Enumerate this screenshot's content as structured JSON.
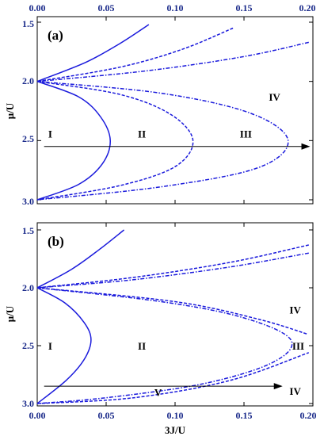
{
  "chart_data": [
    {
      "type": "line",
      "panel_label": "(a)",
      "xlabel": "",
      "ylabel": "μ/U",
      "x_tick_position": "top",
      "xlim": [
        0.0,
        0.2
      ],
      "ylim": [
        3.0,
        1.5
      ],
      "x_ticks": [
        "0.00",
        "0.05",
        "0.10",
        "0.15",
        "0.20"
      ],
      "y_ticks": [
        "1.5",
        "2.0",
        "2.5",
        "3.0"
      ],
      "colors": {
        "curves": "#1a1adc",
        "arrow": "#000000"
      },
      "series": [
        {
          "style": "solid",
          "points": [
            [
              0.081,
              1.52
            ],
            [
              0.06,
              1.68
            ],
            [
              0.035,
              1.84
            ],
            [
              0.0,
              2.0
            ]
          ]
        },
        {
          "style": "dashed",
          "points": [
            [
              0.142,
              1.55
            ],
            [
              0.105,
              1.73
            ],
            [
              0.06,
              1.88
            ],
            [
              0.0,
              2.0
            ]
          ]
        },
        {
          "style": "dashdot",
          "points": [
            [
              0.197,
              1.67
            ],
            [
              0.15,
              1.79
            ],
            [
              0.08,
              1.91
            ],
            [
              0.0,
              2.0
            ]
          ]
        },
        {
          "style": "solid",
          "points": [
            [
              0.0,
              2.0
            ],
            [
              0.03,
              2.13
            ],
            [
              0.046,
              2.3
            ],
            [
              0.053,
              2.5
            ],
            [
              0.047,
              2.7
            ],
            [
              0.03,
              2.87
            ],
            [
              0.0,
              3.0
            ]
          ]
        },
        {
          "style": "dashed",
          "points": [
            [
              0.0,
              2.0
            ],
            [
              0.06,
              2.11
            ],
            [
              0.097,
              2.28
            ],
            [
              0.113,
              2.5
            ],
            [
              0.1,
              2.72
            ],
            [
              0.06,
              2.88
            ],
            [
              0.0,
              3.0
            ]
          ]
        },
        {
          "style": "dashdot",
          "points": [
            [
              0.0,
              2.0
            ],
            [
              0.09,
              2.1
            ],
            [
              0.155,
              2.27
            ],
            [
              0.182,
              2.5
            ],
            [
              0.16,
              2.73
            ],
            [
              0.09,
              2.89
            ],
            [
              0.0,
              3.0
            ]
          ]
        }
      ],
      "region_labels": [
        {
          "text": "I",
          "x": 0.008,
          "y": 2.44
        },
        {
          "text": "II",
          "x": 0.073,
          "y": 2.44
        },
        {
          "text": "III",
          "x": 0.147,
          "y": 2.44
        },
        {
          "text": "IV",
          "x": 0.168,
          "y": 2.13
        }
      ],
      "arrow": {
        "from": [
          0.005,
          2.55
        ],
        "to": [
          0.198,
          2.55
        ]
      }
    },
    {
      "type": "line",
      "panel_label": "(b)",
      "xlabel": "3J/U",
      "ylabel": "μ/U",
      "x_tick_position": "bottom",
      "xlim": [
        0.0,
        0.2
      ],
      "ylim": [
        3.0,
        1.5
      ],
      "x_ticks": [
        "0.00",
        "0.05",
        "0.10",
        "0.15",
        "0.20"
      ],
      "y_ticks": [
        "1.5",
        "2.0",
        "2.5",
        "3.0"
      ],
      "colors": {
        "curves": "#1a1adc",
        "arrow": "#000000"
      },
      "series": [
        {
          "style": "solid",
          "points": [
            [
              0.063,
              1.5
            ],
            [
              0.045,
              1.67
            ],
            [
              0.025,
              1.84
            ],
            [
              0.0,
              2.0
            ]
          ]
        },
        {
          "style": "dashed",
          "points": [
            [
              0.197,
              1.63
            ],
            [
              0.14,
              1.78
            ],
            [
              0.07,
              1.91
            ],
            [
              0.0,
              2.0
            ]
          ]
        },
        {
          "style": "dashdot",
          "points": [
            [
              0.197,
              1.7
            ],
            [
              0.14,
              1.82
            ],
            [
              0.07,
              1.93
            ],
            [
              0.0,
              2.0
            ]
          ]
        },
        {
          "style": "solid",
          "points": [
            [
              0.0,
              2.0
            ],
            [
              0.02,
              2.13
            ],
            [
              0.034,
              2.3
            ],
            [
              0.039,
              2.45
            ],
            [
              0.034,
              2.62
            ],
            [
              0.021,
              2.8
            ],
            [
              0.0,
              3.0
            ]
          ]
        },
        {
          "style": "dashed",
          "points": [
            [
              0.0,
              2.0
            ],
            [
              0.1,
              2.12
            ],
            [
              0.16,
              2.27
            ],
            [
              0.196,
              2.4
            ]
          ]
        },
        {
          "style": "dashdot",
          "points": [
            [
              0.0,
              2.0
            ],
            [
              0.09,
              2.12
            ],
            [
              0.15,
              2.26
            ],
            [
              0.184,
              2.45
            ],
            [
              0.17,
              2.65
            ],
            [
              0.12,
              2.83
            ],
            [
              0.05,
              2.95
            ],
            [
              0.0,
              3.0
            ]
          ]
        },
        {
          "style": "dashed",
          "points": [
            [
              0.0,
              3.0
            ],
            [
              0.07,
              2.95
            ],
            [
              0.14,
              2.8
            ],
            [
              0.197,
              2.56
            ]
          ]
        }
      ],
      "region_labels": [
        {
          "text": "I",
          "x": 0.008,
          "y": 2.5
        },
        {
          "text": "II",
          "x": 0.073,
          "y": 2.5
        },
        {
          "text": "III",
          "x": 0.185,
          "y": 2.5
        },
        {
          "text": "IV",
          "x": 0.183,
          "y": 2.19
        },
        {
          "text": "IV",
          "x": 0.183,
          "y": 2.89
        },
        {
          "text": "V",
          "x": 0.085,
          "y": 2.9
        }
      ],
      "arrow": {
        "from": [
          0.005,
          2.85
        ],
        "to": [
          0.178,
          2.85
        ]
      }
    }
  ]
}
